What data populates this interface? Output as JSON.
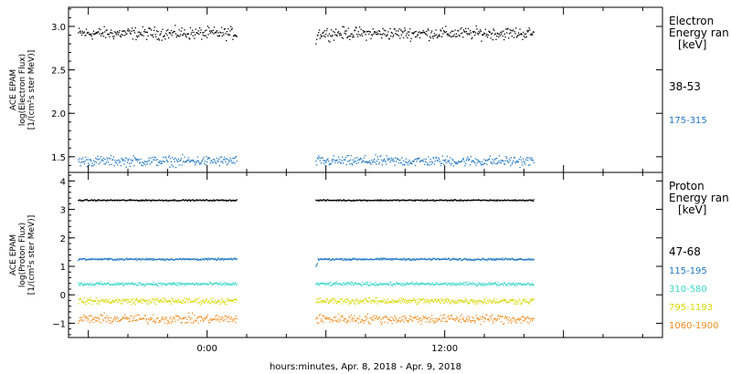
{
  "xlabel": "hours:minutes, Apr.  8, 2018 - Apr.  9, 2018",
  "x_ticks": [
    {
      "label": "0:00",
      "hours": 0
    },
    {
      "label": "12:00",
      "hours": 12
    }
  ],
  "chart_data": [
    {
      "type": "scatter",
      "name": "electron",
      "ylabel_lines": [
        "ACE EPAM",
        "log(Electron Flux)",
        "[1/(cm²s ster MeV)]"
      ],
      "legend_title": [
        "Electron",
        "Energy ran",
        "[keV]"
      ],
      "xlim_hours": [
        -7,
        23
      ],
      "ylim": [
        1.32,
        3.22
      ],
      "y_ticks": [
        1.5,
        2.0,
        2.5,
        3.0
      ],
      "y_ticklabels": [
        "1.5",
        "2.0",
        "2.5",
        "3.0"
      ],
      "data_segments_hours": [
        [
          -6.5,
          1.5
        ],
        [
          5.5,
          16.5
        ]
      ],
      "series": [
        {
          "name": "38-53",
          "color": "#000000",
          "mean": 2.92,
          "spread": 0.06,
          "start_value": 2.8
        },
        {
          "name": "175-315",
          "color": "#1f77c4",
          "mean": 1.45,
          "spread": 0.05
        }
      ]
    },
    {
      "type": "scatter",
      "name": "proton",
      "ylabel_lines": [
        "ACE EPAM",
        "log(Proton Flux)",
        "[1/(cm²s ster MeV)]"
      ],
      "legend_title": [
        "Proton",
        "Energy ran",
        "[keV]"
      ],
      "xlim_hours": [
        -7,
        23
      ],
      "ylim": [
        -1.5,
        4.3
      ],
      "y_ticks": [
        -1,
        0,
        1,
        2,
        3,
        4
      ],
      "y_ticklabels": [
        "−1",
        "0",
        "1",
        "2",
        "3",
        "4"
      ],
      "data_segments_hours": [
        [
          -6.5,
          1.5
        ],
        [
          5.5,
          16.5
        ]
      ],
      "series": [
        {
          "name": "47-68",
          "color": "#000000",
          "mean": 3.32,
          "spread": 0.02
        },
        {
          "name": "115-195",
          "color": "#1f77c4",
          "mean": 1.25,
          "spread": 0.03,
          "start_value": 1.0
        },
        {
          "name": "310-580",
          "color": "#38d7c8",
          "mean": 0.38,
          "spread": 0.05
        },
        {
          "name": "795-1193",
          "color": "#d8d800",
          "mean": -0.22,
          "spread": 0.09
        },
        {
          "name": "1060-1900",
          "color": "#f28c1e",
          "mean": -0.85,
          "spread": 0.14
        }
      ]
    }
  ]
}
